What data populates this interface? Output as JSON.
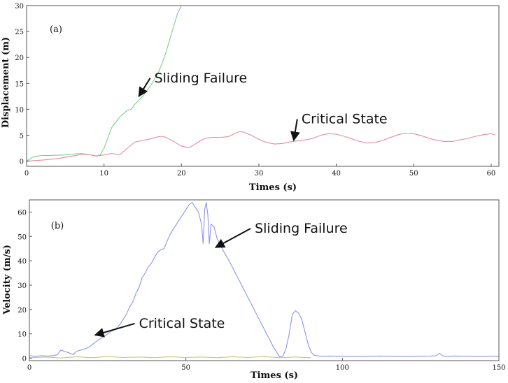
{
  "chart_data": [
    {
      "type": "line",
      "panel_label": "(a)",
      "xlabel": "Times (s)",
      "ylabel": "Displacement (m)",
      "xlim": [
        0,
        61
      ],
      "ylim": [
        -1,
        30
      ],
      "xticks": [
        0,
        10,
        20,
        30,
        40,
        50,
        60
      ],
      "yticks": [
        0,
        5,
        10,
        15,
        20,
        25,
        30
      ],
      "grid": false,
      "series": [
        {
          "color": "#7fcf8f",
          "x": [
            0,
            0.5,
            1,
            2,
            3,
            5,
            7,
            8,
            9,
            9.5,
            10,
            10.5,
            11,
            12,
            13,
            13.5,
            14,
            15,
            16,
            17,
            17.5,
            18,
            18.5,
            19,
            19.5,
            20
          ],
          "y": [
            0,
            0.5,
            0.9,
            1.1,
            1.1,
            1.2,
            1.5,
            1.3,
            1.0,
            1.2,
            2.5,
            4.5,
            6.5,
            8.5,
            9.8,
            10.0,
            11.0,
            12.5,
            14.5,
            17.0,
            18.8,
            21.0,
            23.5,
            26.0,
            28.5,
            30
          ]
        },
        {
          "color": "#e48c9e",
          "x": [
            0,
            2,
            4,
            6,
            7,
            8,
            9,
            10,
            11,
            12,
            13,
            14,
            15,
            16,
            17,
            17.5,
            18,
            19,
            20,
            21,
            22,
            23,
            24,
            25,
            26,
            27,
            27.5,
            28,
            29,
            30,
            31,
            32,
            33,
            34,
            35,
            36,
            37,
            38,
            39,
            40,
            41,
            42,
            43,
            44,
            45,
            46,
            47,
            48,
            49,
            50,
            51,
            52,
            53,
            54,
            55,
            56,
            57,
            58,
            59,
            60,
            60.5
          ],
          "y": [
            0,
            0.2,
            0.5,
            1.0,
            1.3,
            1.3,
            1.0,
            1.2,
            1.5,
            1.2,
            2.5,
            3.7,
            4.0,
            4.3,
            4.7,
            4.8,
            4.6,
            3.8,
            2.9,
            2.6,
            3.5,
            4.4,
            4.6,
            4.6,
            4.7,
            5.4,
            5.7,
            5.6,
            5.0,
            4.2,
            3.6,
            3.3,
            3.4,
            3.7,
            3.9,
            4.1,
            4.4,
            5.0,
            5.3,
            5.2,
            4.8,
            4.3,
            3.8,
            3.5,
            3.6,
            4.0,
            4.6,
            5.1,
            5.4,
            5.3,
            4.9,
            4.4,
            4.0,
            3.8,
            3.8,
            4.1,
            4.4,
            4.8,
            5.1,
            5.3,
            5.1
          ]
        }
      ],
      "annotations": [
        {
          "text": "Sliding Failure",
          "data_x": 16.5,
          "data_y": 15.2,
          "arrow_to": [
            14.5,
            12.5
          ]
        },
        {
          "text": "Critical State",
          "data_x": 35.5,
          "data_y": 7.3,
          "arrow_to": [
            34.5,
            4.0
          ]
        }
      ]
    },
    {
      "type": "line",
      "panel_label": "(b)",
      "xlabel": "Times (s)",
      "ylabel": "Velocity (m/s)",
      "xlim": [
        0,
        150
      ],
      "ylim": [
        -1,
        65
      ],
      "xticks": [
        0,
        50,
        100,
        150
      ],
      "yticks": [
        0,
        10,
        20,
        30,
        40,
        50,
        60
      ],
      "grid": false,
      "series": [
        {
          "color": "#8c94e6",
          "x": [
            0,
            2,
            4,
            6,
            8,
            9,
            10,
            11,
            12,
            13,
            14,
            15,
            16,
            17,
            18,
            19,
            20,
            21,
            22,
            23,
            24,
            25,
            26,
            27,
            28,
            29,
            30,
            31,
            32,
            33,
            34,
            35,
            36,
            37,
            38,
            39,
            40,
            41,
            42,
            43,
            44,
            45,
            46,
            47,
            48,
            49,
            50,
            51,
            52,
            53,
            54,
            55,
            55.5,
            56,
            56.5,
            57,
            57.5,
            58,
            59,
            60,
            62,
            64,
            66,
            68,
            70,
            72,
            74,
            76,
            78,
            80,
            81,
            82,
            83,
            84,
            85,
            86,
            87,
            88,
            89,
            90,
            91,
            92,
            93,
            94,
            96,
            100,
            104,
            108,
            112,
            116,
            120,
            124,
            128,
            130,
            131,
            132,
            133,
            136,
            140,
            144,
            148,
            150
          ],
          "y": [
            1.0,
            0.8,
            1.0,
            0.9,
            1.1,
            1.5,
            3.3,
            2.9,
            2.5,
            2.0,
            1.5,
            2.8,
            3.2,
            3.5,
            4.0,
            4.5,
            5.5,
            6.5,
            7.5,
            8.3,
            9.0,
            10.0,
            11.0,
            11.5,
            12.5,
            14.0,
            16.0,
            18.0,
            21.0,
            23.0,
            26.5,
            29.0,
            33.0,
            35.0,
            37.5,
            39.0,
            41.5,
            43.5,
            44.5,
            45.0,
            48.0,
            51.0,
            53.0,
            55.0,
            57.0,
            59.0,
            61.0,
            63.0,
            64.0,
            62.0,
            60.0,
            55.0,
            47.0,
            61.0,
            64.0,
            59.0,
            47.0,
            55.0,
            54.0,
            49.0,
            44.0,
            39.5,
            34.5,
            29.5,
            24.5,
            19.5,
            14.5,
            9.5,
            4.5,
            0.5,
            0.8,
            4.0,
            10.0,
            18.0,
            19.5,
            18.5,
            16.0,
            11.0,
            6.0,
            2.5,
            1.2,
            1.0,
            0.8,
            0.8,
            0.9,
            0.8,
            0.7,
            0.8,
            0.9,
            0.8,
            0.7,
            0.8,
            0.9,
            1.0,
            2.0,
            1.0,
            0.8,
            0.9,
            0.8,
            0.7,
            0.8,
            0.8
          ]
        },
        {
          "color": "#c8c87a",
          "x": [
            0,
            5,
            10,
            15,
            20,
            25,
            30,
            35,
            40,
            45,
            50,
            55,
            60,
            65,
            70,
            75,
            80,
            85,
            90
          ],
          "y": [
            0.2,
            0.5,
            0.1,
            0.6,
            0.2,
            0.7,
            0.3,
            0.5,
            0.2,
            0.6,
            0.3,
            0.5,
            0.2,
            0.6,
            0.3,
            0.7,
            0.2,
            0.5,
            0.2
          ]
        }
      ],
      "annotations": [
        {
          "text": "Sliding Failure",
          "data_x": 72,
          "data_y": 51.5,
          "arrow_to": [
            59.5,
            45.5
          ]
        },
        {
          "text": "Critical State",
          "data_x": 35,
          "data_y": 12.5,
          "arrow_to": [
            21,
            9.5
          ]
        }
      ]
    }
  ]
}
